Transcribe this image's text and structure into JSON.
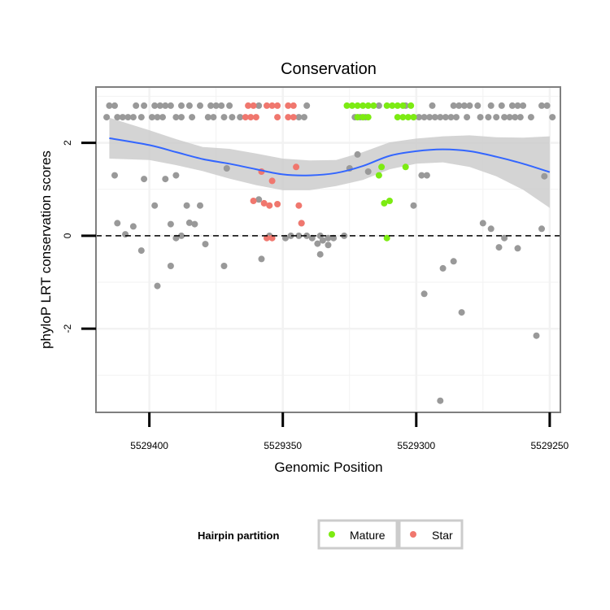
{
  "chart_data": {
    "type": "scatter",
    "title": "Conservation",
    "xlabel": "Genomic Position",
    "ylabel": "phyloP LRT conservation scores",
    "x_reversed": true,
    "xlim": [
      5529420,
      5529246
    ],
    "ylim": [
      -3.8,
      3.2
    ],
    "x_ticks": [
      5529400,
      5529350,
      5529300,
      5529250
    ],
    "x_tick_labels": [
      "5529400",
      "5529350",
      "5529300",
      "5529250"
    ],
    "y_ticks": [
      -2,
      0,
      2
    ],
    "y_tick_labels": [
      "-2",
      "0",
      "2"
    ],
    "reference_line": {
      "y": 0,
      "style": "dashed"
    },
    "grid": true,
    "colors": {
      "other": "#999999",
      "Mature": "#7CEB12",
      "Star": "#F0776E",
      "smooth": "#3366FF",
      "ribbon": "#CCCCCC",
      "panel_border": "#7F7F7F",
      "grid": "#F2F2F2"
    },
    "legend": {
      "title": "Hairpin partition",
      "position": "bottom",
      "entries": [
        {
          "label": "Mature",
          "color": "#7CEB12"
        },
        {
          "label": "Star",
          "color": "#F0776E"
        }
      ]
    },
    "smooth": {
      "x": [
        5529415,
        5529400,
        5529390,
        5529380,
        5529370,
        5529360,
        5529350,
        5529340,
        5529330,
        5529320,
        5529310,
        5529300,
        5529290,
        5529280,
        5529270,
        5529260,
        5529250
      ],
      "y": [
        2.1,
        1.95,
        1.8,
        1.65,
        1.55,
        1.43,
        1.32,
        1.3,
        1.35,
        1.5,
        1.72,
        1.82,
        1.86,
        1.82,
        1.7,
        1.55,
        1.37
      ],
      "lower": [
        1.66,
        1.63,
        1.52,
        1.39,
        1.23,
        1.09,
        0.98,
        0.98,
        1.07,
        1.2,
        1.43,
        1.55,
        1.58,
        1.48,
        1.28,
        0.99,
        0.6
      ],
      "upper": [
        2.54,
        2.27,
        2.08,
        1.91,
        1.87,
        1.77,
        1.66,
        1.62,
        1.63,
        1.8,
        2.01,
        2.09,
        2.14,
        2.16,
        2.12,
        2.11,
        2.14
      ]
    },
    "series": [
      {
        "name": "other",
        "points": [
          [
            5529415,
            2.8
          ],
          [
            5529413,
            2.8
          ],
          [
            5529405,
            2.8
          ],
          [
            5529402,
            2.8
          ],
          [
            5529398,
            2.8
          ],
          [
            5529396,
            2.8
          ],
          [
            5529394,
            2.8
          ],
          [
            5529392,
            2.8
          ],
          [
            5529388,
            2.8
          ],
          [
            5529385,
            2.8
          ],
          [
            5529381,
            2.8
          ],
          [
            5529377,
            2.8
          ],
          [
            5529375,
            2.8
          ],
          [
            5529373,
            2.8
          ],
          [
            5529370,
            2.8
          ],
          [
            5529359,
            2.8
          ],
          [
            5529341,
            2.8
          ],
          [
            5529314,
            2.8
          ],
          [
            5529304,
            2.8
          ],
          [
            5529294,
            2.8
          ],
          [
            5529286,
            2.8
          ],
          [
            5529284,
            2.8
          ],
          [
            5529282,
            2.8
          ],
          [
            5529280,
            2.8
          ],
          [
            5529277,
            2.8
          ],
          [
            5529272,
            2.8
          ],
          [
            5529268,
            2.8
          ],
          [
            5529264,
            2.8
          ],
          [
            5529262,
            2.8
          ],
          [
            5529260,
            2.8
          ],
          [
            5529253,
            2.8
          ],
          [
            5529251,
            2.8
          ],
          [
            5529416,
            2.55
          ],
          [
            5529412,
            2.55
          ],
          [
            5529410,
            2.55
          ],
          [
            5529408,
            2.55
          ],
          [
            5529406,
            2.55
          ],
          [
            5529403,
            2.55
          ],
          [
            5529399,
            2.55
          ],
          [
            5529397,
            2.55
          ],
          [
            5529395,
            2.55
          ],
          [
            5529390,
            2.55
          ],
          [
            5529388,
            2.55
          ],
          [
            5529384,
            2.55
          ],
          [
            5529378,
            2.55
          ],
          [
            5529376,
            2.55
          ],
          [
            5529372,
            2.55
          ],
          [
            5529369,
            2.55
          ],
          [
            5529366,
            2.55
          ],
          [
            5529344,
            2.55
          ],
          [
            5529342,
            2.55
          ],
          [
            5529323,
            2.55
          ],
          [
            5529321,
            2.55
          ],
          [
            5529319,
            2.55
          ],
          [
            5529301,
            2.55
          ],
          [
            5529299,
            2.55
          ],
          [
            5529297,
            2.55
          ],
          [
            5529295,
            2.55
          ],
          [
            5529293,
            2.55
          ],
          [
            5529291,
            2.55
          ],
          [
            5529289,
            2.55
          ],
          [
            5529287,
            2.55
          ],
          [
            5529285,
            2.55
          ],
          [
            5529281,
            2.55
          ],
          [
            5529276,
            2.55
          ],
          [
            5529273,
            2.55
          ],
          [
            5529270,
            2.55
          ],
          [
            5529267,
            2.55
          ],
          [
            5529265,
            2.55
          ],
          [
            5529263,
            2.55
          ],
          [
            5529261,
            2.55
          ],
          [
            5529257,
            2.55
          ],
          [
            5529249,
            2.55
          ],
          [
            5529413,
            1.3
          ],
          [
            5529402,
            1.22
          ],
          [
            5529394,
            1.22
          ],
          [
            5529390,
            1.3
          ],
          [
            5529371,
            1.45
          ],
          [
            5529325,
            1.45
          ],
          [
            5529322,
            1.75
          ],
          [
            5529318,
            1.38
          ],
          [
            5529298,
            1.3
          ],
          [
            5529296,
            1.3
          ],
          [
            5529252,
            1.28
          ],
          [
            5529398,
            0.65
          ],
          [
            5529386,
            0.65
          ],
          [
            5529381,
            0.65
          ],
          [
            5529359,
            0.78
          ],
          [
            5529412,
            0.27
          ],
          [
            5529406,
            0.2
          ],
          [
            5529392,
            0.25
          ],
          [
            5529385,
            0.28
          ],
          [
            5529383,
            0.25
          ],
          [
            5529343,
            0.27
          ],
          [
            5529336,
            0.0
          ],
          [
            5529301,
            0.65
          ],
          [
            5529275,
            0.27
          ],
          [
            5529272,
            0.15
          ],
          [
            5529253,
            0.15
          ],
          [
            5529409,
            0.03
          ],
          [
            5529403,
            -0.32
          ],
          [
            5529388,
            0.0
          ],
          [
            5529379,
            -0.18
          ],
          [
            5529358,
            -0.5
          ],
          [
            5529349,
            -0.05
          ],
          [
            5529347,
            0.0
          ],
          [
            5529344,
            0.0
          ],
          [
            5529341,
            0.0
          ],
          [
            5529339,
            -0.05
          ],
          [
            5529335,
            -0.1
          ],
          [
            5529333,
            -0.05
          ],
          [
            5529331,
            -0.05
          ],
          [
            5529390,
            -0.05
          ],
          [
            5529392,
            -0.65
          ],
          [
            5529372,
            -0.65
          ],
          [
            5529333,
            -0.2
          ],
          [
            5529337,
            -0.17
          ],
          [
            5529336,
            -0.4
          ],
          [
            5529327,
            0.0
          ],
          [
            5529290,
            -0.7
          ],
          [
            5529286,
            -0.55
          ],
          [
            5529269,
            -0.25
          ],
          [
            5529267,
            -0.05
          ],
          [
            5529262,
            -0.27
          ],
          [
            5529355,
            0.0
          ],
          [
            5529397,
            -1.08
          ],
          [
            5529297,
            -1.25
          ],
          [
            5529283,
            -1.65
          ],
          [
            5529291,
            -3.55
          ],
          [
            5529255,
            -2.15
          ]
        ]
      },
      {
        "name": "Star",
        "points": [
          [
            5529363,
            2.8
          ],
          [
            5529361,
            2.8
          ],
          [
            5529356,
            2.8
          ],
          [
            5529354,
            2.8
          ],
          [
            5529352,
            2.8
          ],
          [
            5529348,
            2.8
          ],
          [
            5529346,
            2.8
          ],
          [
            5529364,
            2.55
          ],
          [
            5529362,
            2.55
          ],
          [
            5529360,
            2.55
          ],
          [
            5529352,
            2.55
          ],
          [
            5529348,
            2.55
          ],
          [
            5529346,
            2.55
          ],
          [
            5529345,
            1.48
          ],
          [
            5529358,
            1.38
          ],
          [
            5529354,
            1.18
          ],
          [
            5529361,
            0.75
          ],
          [
            5529355,
            0.65
          ],
          [
            5529352,
            0.68
          ],
          [
            5529344,
            0.65
          ],
          [
            5529357,
            0.7
          ],
          [
            5529343,
            0.27
          ],
          [
            5529356,
            -0.05
          ],
          [
            5529354,
            -0.05
          ]
        ]
      },
      {
        "name": "Mature",
        "points": [
          [
            5529326,
            2.8
          ],
          [
            5529324,
            2.8
          ],
          [
            5529322,
            2.8
          ],
          [
            5529320,
            2.8
          ],
          [
            5529318,
            2.8
          ],
          [
            5529316,
            2.8
          ],
          [
            5529311,
            2.8
          ],
          [
            5529309,
            2.8
          ],
          [
            5529307,
            2.8
          ],
          [
            5529305,
            2.8
          ],
          [
            5529302,
            2.8
          ],
          [
            5529322,
            2.55
          ],
          [
            5529320,
            2.55
          ],
          [
            5529318,
            2.55
          ],
          [
            5529307,
            2.55
          ],
          [
            5529305,
            2.55
          ],
          [
            5529303,
            2.55
          ],
          [
            5529301,
            2.55
          ],
          [
            5529313,
            1.48
          ],
          [
            5529304,
            1.48
          ],
          [
            5529314,
            1.3
          ],
          [
            5529312,
            0.7
          ],
          [
            5529310,
            0.75
          ],
          [
            5529311,
            -0.05
          ]
        ]
      }
    ]
  }
}
